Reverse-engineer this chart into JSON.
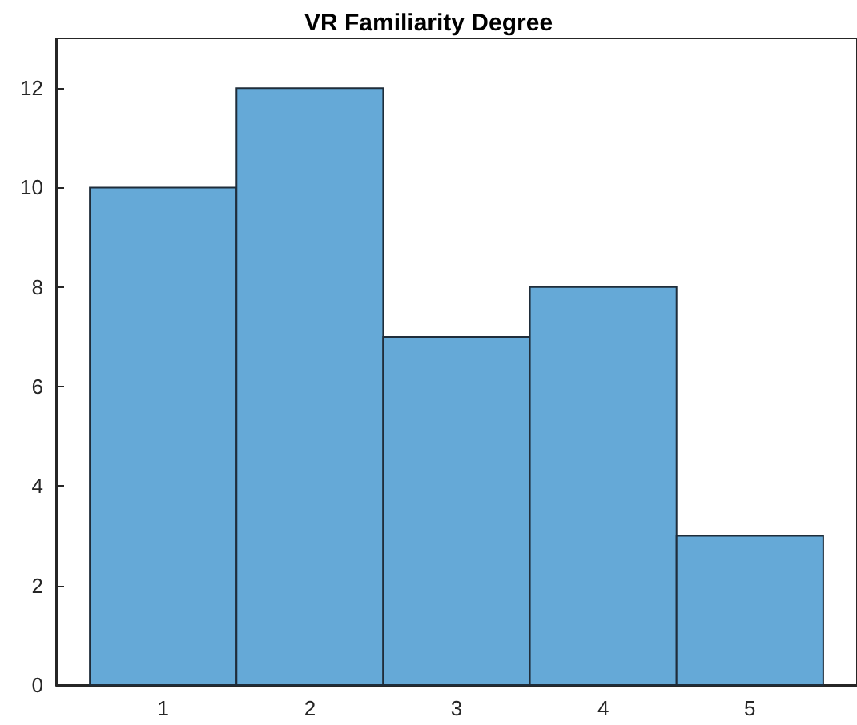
{
  "chart_data": {
    "type": "histogram",
    "title": "VR Familiarity Degree",
    "bins": [
      0.5,
      1.5,
      2.5,
      3.5,
      4.5,
      5.5
    ],
    "values": [
      10,
      12,
      7,
      8,
      3
    ],
    "color": "#65a9d7",
    "xlim": [
      0.27,
      5.73
    ],
    "xticks": [
      1,
      2,
      3,
      4,
      5
    ],
    "ylim": [
      0,
      13
    ],
    "yticks": [
      0,
      2,
      4,
      6,
      8,
      10,
      12
    ]
  }
}
